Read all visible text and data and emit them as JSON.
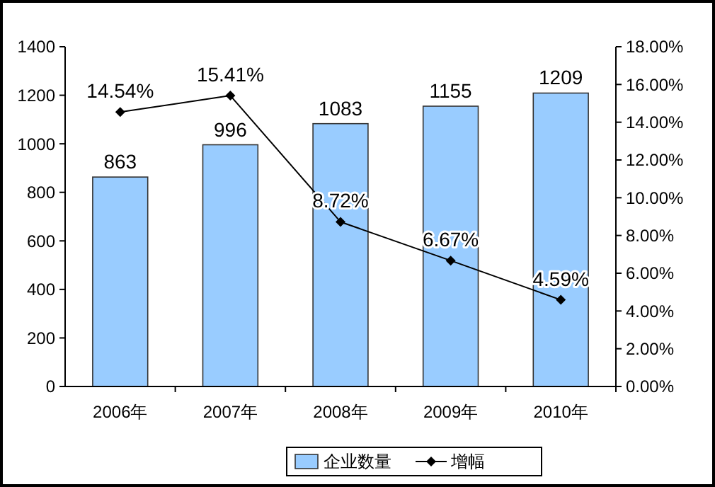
{
  "chart_data": {
    "type": "bar",
    "categories": [
      "2006年",
      "2007年",
      "2008年",
      "2009年",
      "2010年"
    ],
    "series": [
      {
        "name": "企业数量",
        "color": "#99ccff",
        "values": [
          863,
          996,
          1083,
          1155,
          1209
        ],
        "value_labels": [
          "863",
          "996",
          "1083",
          "1155",
          "1209"
        ]
      },
      {
        "name": "增幅",
        "type": "line",
        "axis": "y2",
        "color": "#000000",
        "marker": "diamond",
        "values": [
          14.54,
          15.41,
          8.72,
          6.67,
          4.59
        ],
        "value_labels": [
          "14.54%",
          "15.41%",
          "8.72%",
          "6.67%",
          "4.59%"
        ]
      }
    ],
    "ylim": [
      0,
      1400
    ],
    "yticks": [
      0,
      200,
      400,
      600,
      800,
      1000,
      1200,
      1400
    ],
    "y2lim": [
      0,
      18
    ],
    "y2ticks": [
      {
        "value": 0,
        "label": "0.00%"
      },
      {
        "value": 2,
        "label": "2.00%"
      },
      {
        "value": 4,
        "label": "4.00%"
      },
      {
        "value": 6,
        "label": "6.00%"
      },
      {
        "value": 8,
        "label": "8.00%"
      },
      {
        "value": 10,
        "label": "10.00%"
      },
      {
        "value": 12,
        "label": "12.00%"
      },
      {
        "value": 14,
        "label": "14.00%"
      },
      {
        "value": 16,
        "label": "16.00%"
      },
      {
        "value": 18,
        "label": "18.00%"
      }
    ],
    "legend": "bottom",
    "grid": false
  }
}
